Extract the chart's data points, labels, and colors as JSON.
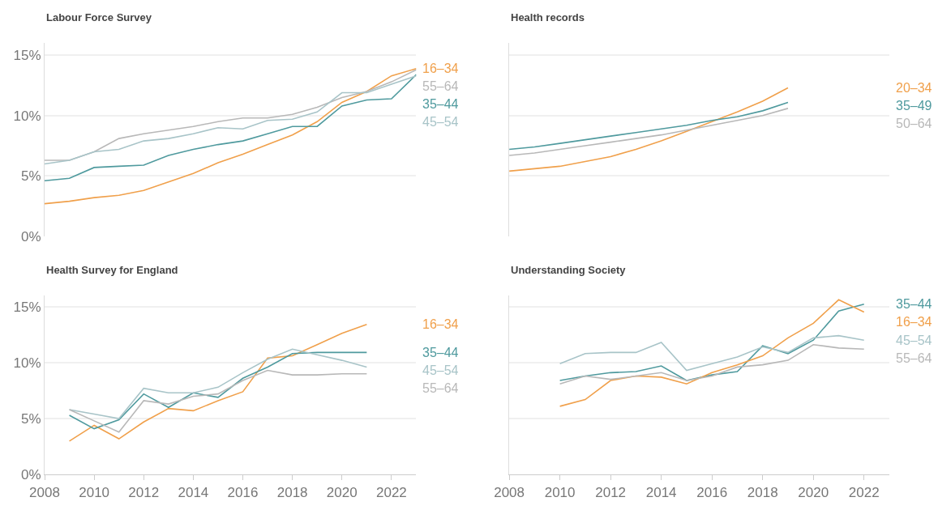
{
  "chart_data": [
    {
      "type": "line",
      "title": "Labour Force Survey",
      "x": [
        2008,
        2009,
        2010,
        2011,
        2012,
        2013,
        2014,
        2015,
        2016,
        2017,
        2018,
        2019,
        2020,
        2021,
        2022,
        2023
      ],
      "xlim": [
        2008,
        2023
      ],
      "xticks": [
        2008,
        2010,
        2012,
        2014,
        2016,
        2018,
        2020,
        2022
      ],
      "ylim": [
        0,
        16
      ],
      "yticks": [
        {
          "value": 0,
          "label": "0%"
        },
        {
          "value": 5,
          "label": "5%"
        },
        {
          "value": 10,
          "label": "10%"
        },
        {
          "value": 15,
          "label": "15%"
        }
      ],
      "tick_labels": "y",
      "grid": "y",
      "legend": false,
      "series": [
        {
          "name": "16–34",
          "color": "#f0a04b",
          "values": [
            2.7,
            2.9,
            3.2,
            3.4,
            3.8,
            4.5,
            5.2,
            6.1,
            6.8,
            7.6,
            8.4,
            9.5,
            11.1,
            12.0,
            13.3,
            13.9
          ]
        },
        {
          "name": "55–64",
          "color": "#b8b8b8",
          "values": [
            6.3,
            6.3,
            7.0,
            8.1,
            8.5,
            8.8,
            9.1,
            9.5,
            9.8,
            9.8,
            10.1,
            10.7,
            11.5,
            12.0,
            12.8,
            13.8
          ]
        },
        {
          "name": "35–44",
          "color": "#4f9a9e",
          "values": [
            4.6,
            4.8,
            5.7,
            5.8,
            5.9,
            6.7,
            7.2,
            7.6,
            7.9,
            8.5,
            9.1,
            9.1,
            10.8,
            11.3,
            11.4,
            13.4
          ]
        },
        {
          "name": "45–54",
          "color": "#a8c4c8",
          "values": [
            6.0,
            6.3,
            7.0,
            7.2,
            7.9,
            8.1,
            8.5,
            9.0,
            8.9,
            9.6,
            9.7,
            10.3,
            11.9,
            11.9,
            12.6,
            13.3
          ]
        }
      ]
    },
    {
      "type": "line",
      "title": "Health records",
      "x": [
        2008,
        2009,
        2010,
        2011,
        2012,
        2013,
        2014,
        2015,
        2016,
        2017,
        2018,
        2019
      ],
      "xlim": [
        2008,
        2023
      ],
      "xticks": [
        2008,
        2010,
        2012,
        2014,
        2016,
        2018,
        2020,
        2022
      ],
      "ylim": [
        0,
        16
      ],
      "yticks": [
        {
          "value": 0,
          "label": null
        },
        {
          "value": 5,
          "label": null
        },
        {
          "value": 10,
          "label": null
        },
        {
          "value": 15,
          "label": null
        }
      ],
      "tick_labels": false,
      "grid": "y",
      "legend": false,
      "series": [
        {
          "name": "20–34",
          "color": "#f0a04b",
          "values": [
            5.4,
            5.6,
            5.8,
            6.2,
            6.6,
            7.2,
            7.9,
            8.7,
            9.5,
            10.3,
            11.2,
            12.3
          ]
        },
        {
          "name": "35–49",
          "color": "#4f9a9e",
          "values": [
            7.2,
            7.4,
            7.7,
            8.0,
            8.3,
            8.6,
            8.9,
            9.2,
            9.6,
            9.9,
            10.4,
            11.1
          ]
        },
        {
          "name": "50–64",
          "color": "#b8b8b8",
          "values": [
            6.7,
            6.9,
            7.2,
            7.5,
            7.8,
            8.1,
            8.4,
            8.8,
            9.2,
            9.6,
            10.0,
            10.6
          ]
        }
      ]
    },
    {
      "type": "line",
      "title": "Health Survey for England",
      "x": [
        2009,
        2010,
        2011,
        2012,
        2013,
        2014,
        2015,
        2016,
        2017,
        2018,
        2019,
        2020,
        2021
      ],
      "xlim": [
        2008,
        2023
      ],
      "xticks": [
        2008,
        2010,
        2012,
        2014,
        2016,
        2018,
        2020,
        2022
      ],
      "ylim": [
        0,
        16
      ],
      "yticks": [
        {
          "value": 0,
          "label": "0%"
        },
        {
          "value": 5,
          "label": "5%"
        },
        {
          "value": 10,
          "label": "10%"
        },
        {
          "value": 15,
          "label": "15%"
        }
      ],
      "grid": "y",
      "legend": false,
      "series": [
        {
          "name": "16–34",
          "color": "#f0a04b",
          "values": [
            3.0,
            4.4,
            3.2,
            4.7,
            5.9,
            5.7,
            6.6,
            7.4,
            10.4,
            10.6,
            11.6,
            12.6,
            13.4
          ]
        },
        {
          "name": "35–44",
          "color": "#4f9a9e",
          "values": [
            5.3,
            4.1,
            4.9,
            7.2,
            6.0,
            7.3,
            6.9,
            8.6,
            9.6,
            10.8,
            10.9,
            10.9,
            10.9
          ]
        },
        {
          "name": "45–54",
          "color": "#a8c4c8",
          "values": [
            5.8,
            5.4,
            5.0,
            7.7,
            7.3,
            7.3,
            7.8,
            9.1,
            10.3,
            11.2,
            10.7,
            10.2,
            9.6
          ]
        },
        {
          "name": "55–64",
          "color": "#b8b8b8",
          "values": [
            5.8,
            4.8,
            3.8,
            6.6,
            6.3,
            7.0,
            7.2,
            8.4,
            9.3,
            8.9,
            8.9,
            9.0,
            9.0
          ]
        }
      ]
    },
    {
      "type": "line",
      "title": "Understanding Society",
      "x": [
        2010,
        2011,
        2012,
        2013,
        2014,
        2015,
        2016,
        2017,
        2018,
        2019,
        2020,
        2021,
        2022
      ],
      "xlim": [
        2008,
        2023
      ],
      "xticks": [
        2008,
        2010,
        2012,
        2014,
        2016,
        2018,
        2020,
        2022
      ],
      "ylim": [
        0,
        16
      ],
      "yticks": [
        {
          "value": 0,
          "label": null
        },
        {
          "value": 5,
          "label": null
        },
        {
          "value": 10,
          "label": null
        },
        {
          "value": 15,
          "label": null
        }
      ],
      "tick_labels": "x",
      "grid": "y",
      "legend": false,
      "series": [
        {
          "name": "35–44",
          "color": "#4f9a9e",
          "values": [
            8.4,
            8.8,
            9.1,
            9.2,
            9.7,
            8.4,
            8.9,
            9.2,
            11.5,
            10.8,
            12.0,
            14.6,
            15.2
          ]
        },
        {
          "name": "16–34",
          "color": "#f0a04b",
          "values": [
            6.1,
            6.7,
            8.4,
            8.8,
            8.7,
            8.1,
            9.1,
            9.8,
            10.6,
            12.2,
            13.5,
            15.6,
            14.5
          ]
        },
        {
          "name": "45–54",
          "color": "#a8c4c8",
          "values": [
            9.9,
            10.8,
            10.9,
            10.9,
            11.8,
            9.3,
            9.9,
            10.5,
            11.4,
            10.9,
            12.2,
            12.4,
            12.0
          ]
        },
        {
          "name": "55–64",
          "color": "#b8b8b8",
          "values": [
            8.1,
            8.8,
            8.5,
            8.8,
            9.1,
            8.4,
            8.8,
            9.6,
            9.8,
            10.2,
            11.6,
            11.3,
            11.2
          ]
        }
      ]
    }
  ]
}
